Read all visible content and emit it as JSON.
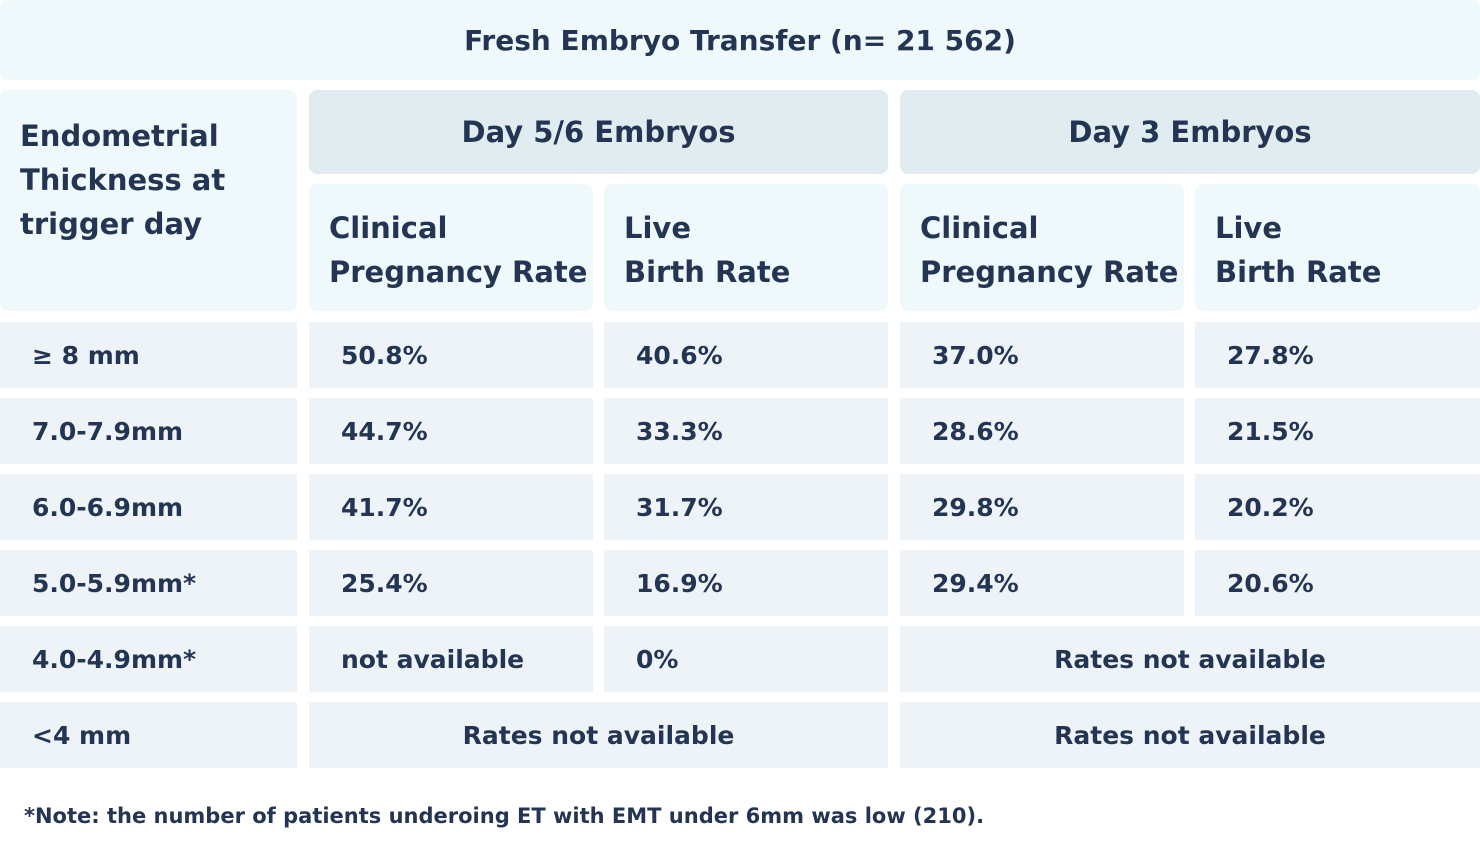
{
  "title": "Fresh Embryo Transfer (n= 21 562)",
  "row_header": "Endometrial Thickness at trigger day",
  "groups": [
    {
      "label": "Day 5/6 Embryos"
    },
    {
      "label": "Day 3 Embryos"
    }
  ],
  "subheaders": [
    {
      "line1": "Clinical",
      "line2": "Pregnancy Rate"
    },
    {
      "line1": "Live",
      "line2": "Birth Rate"
    },
    {
      "line1": "Clinical",
      "line2": "Pregnancy Rate"
    },
    {
      "line1": "Live",
      "line2": "Birth Rate"
    }
  ],
  "rows": [
    {
      "label": "≥ 8 mm",
      "d56_cpr": "50.8%",
      "d56_lbr": "40.6%",
      "d3_cpr": "37.0%",
      "d3_lbr": "27.8%"
    },
    {
      "label": "7.0-7.9mm",
      "d56_cpr": "44.7%",
      "d56_lbr": "33.3%",
      "d3_cpr": "28.6%",
      "d3_lbr": "21.5%"
    },
    {
      "label": "6.0-6.9mm",
      "d56_cpr": "41.7%",
      "d56_lbr": "31.7%",
      "d3_cpr": "29.8%",
      "d3_lbr": "20.2%"
    },
    {
      "label": "5.0-5.9mm*",
      "d56_cpr": "25.4%",
      "d56_lbr": "16.9%",
      "d3_cpr": "29.4%",
      "d3_lbr": "20.6%"
    },
    {
      "label": "4.0-4.9mm*",
      "d56_cpr": "not available",
      "d56_lbr": "0%",
      "d3_merged": "Rates not available"
    },
    {
      "label": "<4 mm",
      "d56_merged": "Rates not available",
      "d3_merged": "Rates not available"
    }
  ],
  "note": "*Note: the number of patients underoing ET with EMT under 6mm was low (210)."
}
